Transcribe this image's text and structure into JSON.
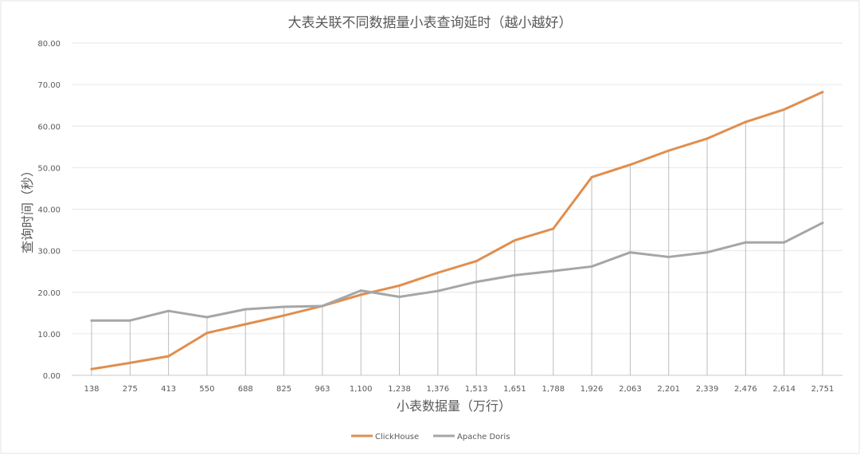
{
  "chart_data": {
    "type": "line",
    "title": "大表关联不同数据量小表查询延时（越小越好）",
    "xlabel": "小表数据量（万行）",
    "ylabel": "查询时间（秒）",
    "ylim": [
      0,
      80
    ],
    "y_ticks": [
      "0.00",
      "10.00",
      "20.00",
      "30.00",
      "40.00",
      "50.00",
      "60.00",
      "70.00",
      "80.00"
    ],
    "categories": [
      "138",
      "275",
      "413",
      "550",
      "688",
      "825",
      "963",
      "1,100",
      "1,238",
      "1,376",
      "1,513",
      "1,651",
      "1,788",
      "1,926",
      "2,063",
      "2,201",
      "2,339",
      "2,476",
      "2,614",
      "2,751"
    ],
    "series": [
      {
        "name": "ClickHouse",
        "color": "#e08e4e",
        "values": [
          1.5,
          3.0,
          4.6,
          10.2,
          12.3,
          14.4,
          16.7,
          19.4,
          21.6,
          24.7,
          27.5,
          32.5,
          35.3,
          47.7,
          50.7,
          54.1,
          57.0,
          61.0,
          64.0,
          68.2
        ]
      },
      {
        "name": "Apache Doris",
        "color": "#a6a6a6",
        "values": [
          13.2,
          13.2,
          15.5,
          14.0,
          15.9,
          16.5,
          16.7,
          20.4,
          18.9,
          20.3,
          22.5,
          24.1,
          25.1,
          26.2,
          29.6,
          28.5,
          29.6,
          32.0,
          32.0,
          36.7
        ]
      }
    ],
    "legend_position": "bottom",
    "grid": true,
    "drop_lines": true
  }
}
